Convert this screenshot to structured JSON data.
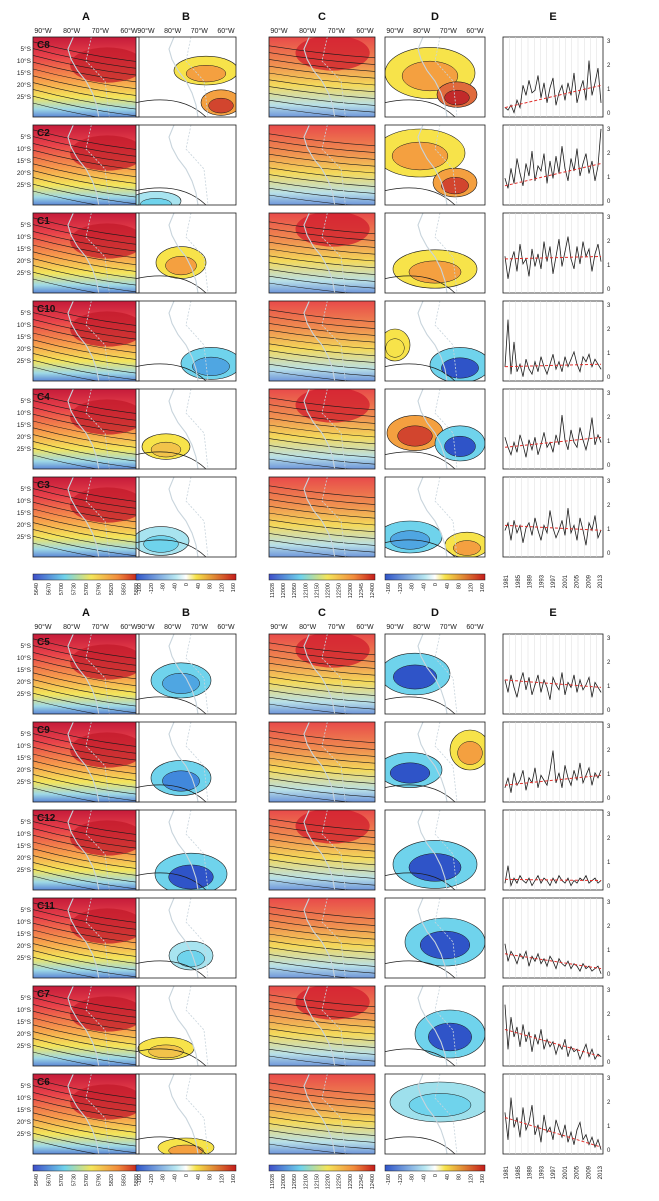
{
  "figure": {
    "column_headers": [
      "A",
      "B",
      "C",
      "D",
      "E"
    ],
    "lon_labels": [
      "90°W",
      "80°W",
      "70°W",
      "60°W"
    ],
    "lat_labels": [
      "5°S",
      "10°S",
      "15°S",
      "20°S",
      "25°S"
    ],
    "year_labels": [
      "1981",
      "1985",
      "1989",
      "1993",
      "1997",
      "2001",
      "2005",
      "2009",
      "2013"
    ],
    "right_axis_ticks": [
      "3",
      "2",
      "1",
      "0"
    ]
  },
  "colors": {
    "red": "#d7191c",
    "orange": "#f4a040",
    "yellow": "#f7e34a",
    "cyan": "#6fd3ec",
    "blue": "#2f54c8",
    "trend": "#e0302c",
    "coast": "#c8d4dc"
  },
  "chart_data": [
    {
      "type": "heatmap",
      "panel_group": "top",
      "clusters": [
        "C8",
        "C2",
        "C1",
        "C10",
        "C4",
        "C3"
      ],
      "colorbars": {
        "A": [
          "5640",
          "5670",
          "5700",
          "5730",
          "5760",
          "5790",
          "5820",
          "5850",
          "5880"
        ],
        "B": [
          "-160",
          "-120",
          "-80",
          "-40",
          "0",
          "40",
          "80",
          "120",
          "160"
        ],
        "C": [
          "11928",
          "12000",
          "12050",
          "12100",
          "12150",
          "12200",
          "12250",
          "12300",
          "12345",
          "12400"
        ],
        "D": [
          "-160",
          "-120",
          "-80",
          "-40",
          "0",
          "40",
          "80",
          "120",
          "160"
        ]
      },
      "frequency_series": [
        {
          "name": "C8",
          "values": [
            0.3,
            0.2,
            0.4,
            0.1,
            0.6,
            0.3,
            1.2,
            0.8,
            1.4,
            0.9,
            1.0,
            1.6,
            0.7,
            1.3,
            0.5,
            1.1,
            1.5,
            0.4,
            0.9,
            1.2,
            0.6,
            1.3,
            0.8,
            1.7,
            0.5,
            1.0,
            1.4,
            0.6,
            2.2,
            0.8,
            1.3,
            1.9,
            0.5
          ],
          "trend": [
            0.3,
            1.2
          ]
        },
        {
          "name": "C2",
          "values": [
            1.0,
            0.6,
            1.4,
            0.8,
            1.8,
            1.2,
            0.7,
            1.6,
            1.1,
            2.1,
            0.9,
            1.5,
            1.3,
            2.0,
            0.8,
            1.7,
            1.0,
            1.9,
            1.2,
            2.3,
            1.4,
            0.9,
            1.8,
            1.3,
            2.2,
            1.1,
            1.6,
            2.0,
            1.2,
            1.7,
            0.9,
            1.5,
            3.0
          ],
          "trend": [
            0.7,
            1.6
          ]
        },
        {
          "name": "C1",
          "values": [
            1.4,
            0.5,
            1.2,
            1.6,
            0.8,
            1.9,
            1.1,
            1.3,
            0.6,
            1.7,
            1.0,
            1.5,
            0.9,
            2.0,
            1.2,
            1.8,
            0.7,
            1.4,
            2.1,
            1.0,
            1.6,
            2.2,
            1.3,
            0.9,
            1.8,
            1.1,
            2.0,
            1.4,
            1.7,
            0.8,
            1.5,
            1.9,
            1.2
          ],
          "trend": [
            1.3,
            1.4
          ]
        },
        {
          "name": "C10",
          "values": [
            0.5,
            2.4,
            0.2,
            1.5,
            0.3,
            0.6,
            0.1,
            0.8,
            0.4,
            0.2,
            0.7,
            0.3,
            0.9,
            0.5,
            0.2,
            0.6,
            1.0,
            0.4,
            0.7,
            0.3,
            0.9,
            0.5,
            0.8,
            1.1,
            0.6,
            0.3,
            0.9,
            0.7,
            1.0,
            0.5,
            0.8,
            0.6,
            0.4
          ],
          "trend": [
            0.5,
            0.6
          ]
        },
        {
          "name": "C4",
          "values": [
            1.2,
            0.8,
            0.5,
            1.0,
            0.6,
            1.3,
            0.9,
            0.4,
            1.1,
            0.7,
            1.2,
            0.5,
            0.9,
            1.4,
            0.8,
            1.0,
            0.6,
            1.3,
            0.9,
            2.1,
            1.1,
            0.7,
            1.5,
            1.0,
            0.8,
            1.6,
            1.1,
            0.7,
            1.2,
            2.0,
            0.9,
            1.3,
            1.0
          ],
          "trend": [
            0.8,
            1.2
          ]
        },
        {
          "name": "C3",
          "values": [
            1.0,
            1.3,
            0.6,
            1.4,
            0.9,
            1.2,
            0.5,
            1.1,
            1.3,
            0.8,
            1.5,
            1.0,
            0.6,
            1.2,
            0.9,
            1.8,
            1.1,
            0.7,
            1.0,
            1.4,
            0.8,
            1.9,
            0.9,
            1.2,
            0.6,
            1.5,
            1.0,
            0.4,
            1.3,
            1.0,
            1.6,
            0.7,
            1.0
          ],
          "trend": [
            1.2,
            1.0
          ]
        }
      ]
    },
    {
      "type": "heatmap",
      "panel_group": "bottom",
      "clusters": [
        "C5",
        "C9",
        "C12",
        "C11",
        "C7",
        "C6"
      ],
      "colorbars": {
        "A": [
          "5640",
          "5670",
          "5700",
          "5730",
          "5760",
          "5790",
          "5820",
          "5850",
          "5880"
        ],
        "B": [
          "-160",
          "-120",
          "-80",
          "-40",
          "0",
          "40",
          "80",
          "120",
          "160"
        ],
        "C": [
          "11928",
          "12000",
          "12050",
          "12100",
          "12150",
          "12200",
          "12250",
          "12300",
          "12345",
          "12400"
        ],
        "D": [
          "-160",
          "-120",
          "-80",
          "-40",
          "0",
          "40",
          "80",
          "120",
          "160"
        ]
      },
      "frequency_series": [
        {
          "name": "C5",
          "values": [
            1.3,
            0.8,
            1.5,
            1.0,
            0.6,
            1.2,
            1.6,
            0.9,
            1.4,
            0.7,
            1.1,
            1.5,
            0.8,
            1.3,
            1.0,
            0.5,
            1.4,
            1.1,
            0.9,
            1.6,
            0.7,
            1.2,
            1.0,
            1.5,
            0.8,
            1.3,
            0.9,
            1.1,
            1.4,
            0.6,
            1.2,
            1.0,
            0.8
          ],
          "trend": [
            1.3,
            1.0
          ]
        },
        {
          "name": "C9",
          "values": [
            0.5,
            0.9,
            0.3,
            1.1,
            0.6,
            0.8,
            1.2,
            0.4,
            0.9,
            0.7,
            1.3,
            0.5,
            1.0,
            0.8,
            0.6,
            1.2,
            2.0,
            0.7,
            1.1,
            0.5,
            1.4,
            0.9,
            0.6,
            1.2,
            0.8,
            1.5,
            0.7,
            1.0,
            1.3,
            0.6,
            1.1,
            0.9,
            1.2
          ],
          "trend": [
            0.6,
            1.0
          ]
        },
        {
          "name": "C12",
          "values": [
            0.2,
            0.9,
            0.1,
            0.4,
            0.2,
            0.5,
            0.3,
            0.2,
            0.4,
            0.1,
            0.3,
            0.5,
            0.2,
            0.4,
            0.3,
            0.1,
            0.4,
            0.2,
            0.5,
            0.3,
            0.2,
            0.4,
            0.1,
            0.3,
            0.2,
            0.4,
            0.3,
            0.5,
            0.2,
            0.3,
            0.4,
            0.2,
            0.3
          ],
          "trend": [
            0.35,
            0.3
          ]
        },
        {
          "name": "C11",
          "values": [
            1.3,
            0.6,
            1.0,
            0.8,
            0.5,
            0.9,
            0.7,
            1.0,
            0.4,
            0.8,
            0.6,
            0.9,
            0.5,
            0.7,
            0.4,
            0.8,
            0.6,
            0.3,
            0.7,
            0.5,
            0.4,
            0.6,
            0.3,
            0.5,
            0.4,
            0.2,
            0.5,
            0.3,
            0.4,
            0.2,
            0.3,
            0.4,
            0.1
          ],
          "trend": [
            0.9,
            0.3
          ]
        },
        {
          "name": "C7",
          "values": [
            2.4,
            0.6,
            1.9,
            1.1,
            1.5,
            0.7,
            1.6,
            0.9,
            1.3,
            0.5,
            1.2,
            0.8,
            1.4,
            0.6,
            1.0,
            0.7,
            0.9,
            0.4,
            0.8,
            0.6,
            1.0,
            0.3,
            0.7,
            0.5,
            0.6,
            0.2,
            0.5,
            0.8,
            0.3,
            0.6,
            0.2,
            0.4,
            0.3
          ],
          "trend": [
            1.4,
            0.3
          ]
        },
        {
          "name": "C6",
          "values": [
            1.6,
            0.5,
            2.2,
            1.0,
            1.4,
            0.6,
            1.8,
            0.9,
            1.2,
            1.9,
            0.7,
            1.1,
            0.4,
            1.5,
            0.8,
            1.0,
            0.5,
            1.3,
            0.9,
            0.6,
            1.1,
            0.4,
            0.8,
            0.3,
            0.9,
            1.2,
            0.5,
            0.7,
            0.3,
            0.6,
            0.2,
            0.5,
            0.1
          ],
          "trend": [
            1.4,
            0.2
          ]
        }
      ]
    }
  ]
}
